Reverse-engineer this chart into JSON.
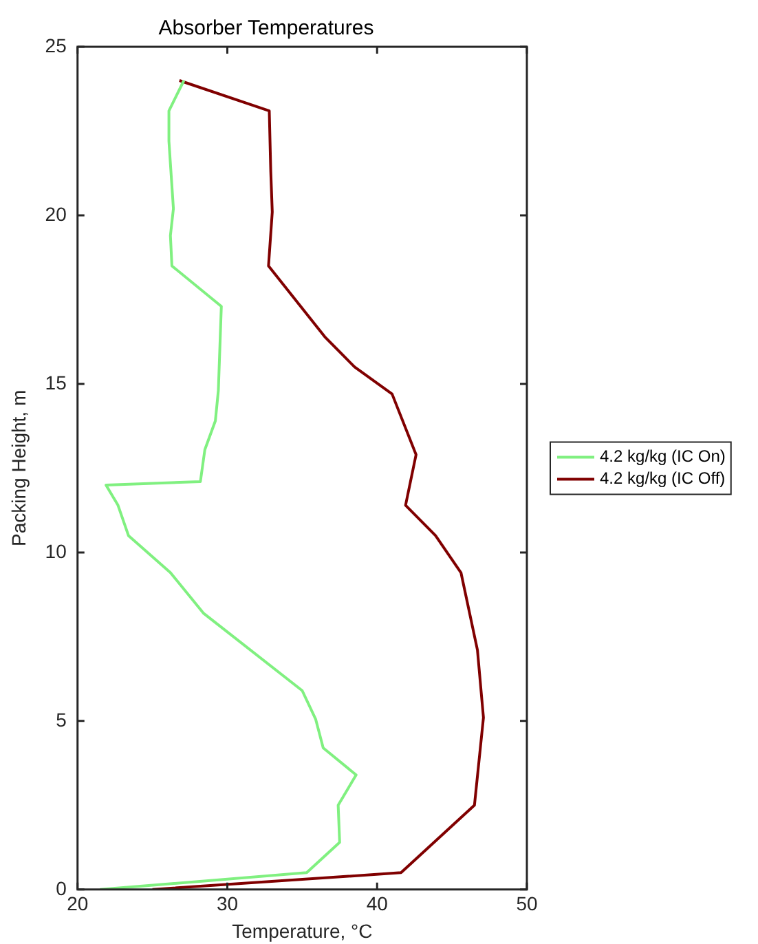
{
  "chart_data": {
    "type": "line",
    "title": "Absorber Temperatures",
    "xlabel": "Temperature, °C",
    "ylabel": "Packing Height, m",
    "xlim": [
      20,
      50
    ],
    "xticks": [
      20,
      30,
      40,
      50
    ],
    "ylim": [
      0,
      25
    ],
    "yticks": [
      0,
      5,
      10,
      15,
      20,
      25
    ],
    "grid": false,
    "legend": "right",
    "series": [
      {
        "name": "4.2 kg/kg (IC On)",
        "color": "#80f080",
        "x": [
          27.1,
          26.1,
          26.1,
          26.4,
          26.2,
          26.3,
          29.6,
          29.4,
          29.2,
          28.5,
          28.2,
          21.9,
          22.7,
          23.4,
          26.2,
          28.4,
          35.0,
          35.9,
          36.4,
          38.6,
          37.4,
          37.5,
          35.3,
          21.5
        ],
        "values": [
          24.0,
          23.1,
          22.2,
          20.2,
          19.4,
          18.5,
          17.3,
          14.8,
          13.9,
          13.05,
          12.1,
          12.0,
          11.4,
          10.5,
          9.4,
          8.2,
          5.9,
          5.05,
          4.2,
          3.4,
          2.5,
          1.4,
          0.5,
          0
        ]
      },
      {
        "name": "4.2 kg/kg (IC Off)",
        "color": "#800000",
        "x": [
          26.8,
          32.8,
          32.9,
          33.0,
          32.75,
          36.5,
          38.5,
          41.0,
          42.6,
          41.9,
          43.9,
          45.6,
          46.7,
          47.1,
          46.5,
          43.8,
          41.6,
          25.0
        ],
        "values": [
          24.0,
          23.1,
          21.3,
          20.1,
          18.5,
          16.4,
          15.5,
          14.7,
          12.9,
          11.4,
          10.5,
          9.4,
          7.1,
          5.1,
          2.5,
          1.4,
          0.5,
          0
        ]
      }
    ]
  }
}
